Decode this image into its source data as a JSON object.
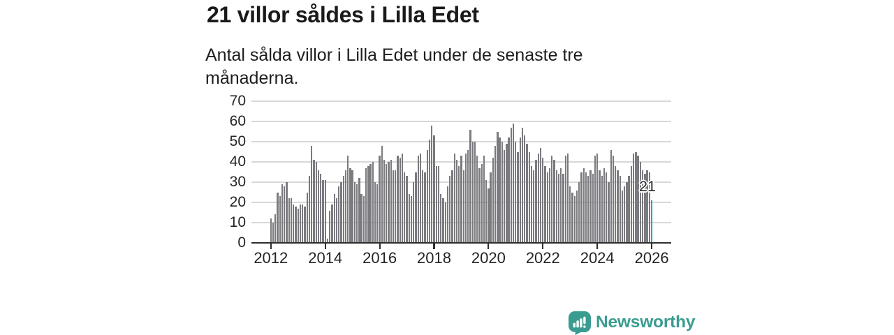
{
  "title": "21 villor såldes i Lilla Edet",
  "subtitle": "Antal sålda villor i Lilla Edet under de senaste tre månaderna.",
  "annotation": {
    "last_value_label": "21"
  },
  "branding": {
    "name": "Newsworthy"
  },
  "colors": {
    "bar": "#7a7a7f",
    "highlight": "#00b1a9",
    "grid": "#d8d8d8",
    "axis": "#2e2e2e",
    "text": "#242424",
    "brand": "#3a9c90"
  },
  "chart_data": {
    "type": "bar",
    "title": "21 villor såldes i Lilla Edet",
    "subtitle": "Antal sålda villor i Lilla Edet under de senaste tre månaderna.",
    "xlabel": "",
    "ylabel": "",
    "ylim": [
      0,
      70
    ],
    "y_ticks": [
      0,
      10,
      20,
      30,
      40,
      50,
      60,
      70
    ],
    "x_tick_labels": [
      "2012",
      "2014",
      "2016",
      "2018",
      "2020",
      "2022",
      "2024",
      "2026"
    ],
    "grid": true,
    "legend": false,
    "interval": "month",
    "x_start": "2012-01",
    "highlight_last_bar": true,
    "last_value": 21,
    "series": [
      {
        "name": "Antal sålda villor",
        "values": [
          12,
          10,
          14,
          25,
          23,
          29,
          28,
          30,
          22,
          22,
          19,
          18,
          17,
          19,
          19,
          18,
          25,
          33,
          48,
          41,
          40,
          36,
          34,
          31,
          31,
          2,
          16,
          19,
          24,
          22,
          28,
          30,
          33,
          36,
          43,
          37,
          36,
          30,
          29,
          32,
          24,
          23,
          37,
          38,
          39,
          40,
          30,
          29,
          43,
          48,
          41,
          39,
          40,
          41,
          36,
          36,
          43,
          42,
          44,
          35,
          33,
          24,
          23,
          30,
          35,
          43,
          44,
          36,
          35,
          46,
          51,
          58,
          53,
          38,
          38,
          24,
          22,
          20,
          28,
          33,
          36,
          44,
          41,
          38,
          43,
          36,
          44,
          46,
          56,
          50,
          50,
          43,
          37,
          39,
          43,
          31,
          27,
          35,
          42,
          48,
          55,
          52,
          50,
          46,
          49,
          52,
          57,
          59,
          50,
          45,
          52,
          57,
          53,
          49,
          45,
          38,
          36,
          41,
          44,
          47,
          42,
          38,
          35,
          37,
          43,
          41,
          36,
          34,
          37,
          34,
          43,
          44,
          28,
          25,
          23,
          26,
          30,
          35,
          37,
          35,
          33,
          36,
          34,
          43,
          44,
          36,
          33,
          37,
          35,
          30,
          46,
          43,
          38,
          36,
          33,
          26,
          28,
          30,
          33,
          38,
          44,
          45,
          43,
          40,
          36,
          34,
          36,
          35,
          21
        ]
      }
    ]
  }
}
